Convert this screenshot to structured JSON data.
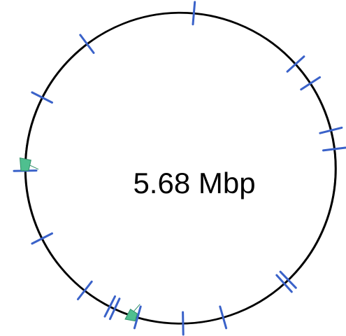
{
  "plasmid_map": {
    "genome_size_label": "5.68 Mbp",
    "colors": {
      "backbone": "#000000",
      "tick": "#3a62c9",
      "feature": "#4fbf8f",
      "feature_outline": "#2f8f68"
    },
    "blue_ticks_deg": [
      5,
      48,
      57,
      76,
      83,
      136,
      138,
      164,
      179,
      196,
      205,
      207,
      218,
      243,
      269,
      297,
      323
    ],
    "green_features_deg": [
      {
        "deg": 198,
        "span": 3
      },
      {
        "deg": 271,
        "span": 4
      }
    ]
  }
}
